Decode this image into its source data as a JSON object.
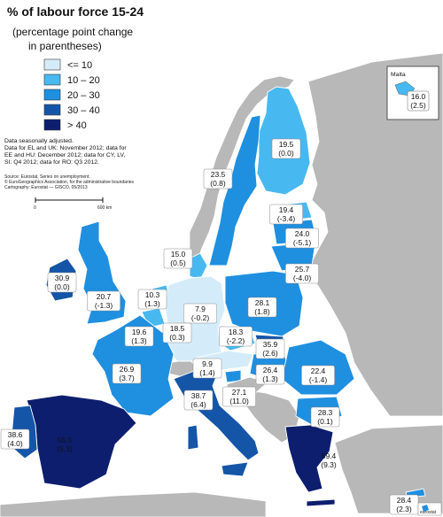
{
  "title": "% of labour force 15-24",
  "subtitle_lines": [
    "(percentage point change",
    "in parentheses)"
  ],
  "legend": [
    {
      "label": "<= 10",
      "color": "#d4ecfa"
    },
    {
      "label": "10 – 20",
      "color": "#48b8f0"
    },
    {
      "label": "20 – 30",
      "color": "#1f8fe0"
    },
    {
      "label": "30 – 40",
      "color": "#1455a8"
    },
    {
      "label": "> 40",
      "color": "#0d1e6e"
    }
  ],
  "notes": [
    "Data seasonally adjusted.",
    "Data for EL and UK: November 2012; data for",
    "EE and HU: December 2012; data for CY, LV,",
    "SI: Q4 2012; data for RO: Q3 2012."
  ],
  "source_lines": [
    "Source: Eurostat, Series on unemployment.",
    "© EuroGeographics Association, for the administrative boundaries",
    "Cartography: Eurostat — GISCO, 05/2013"
  ],
  "scale": {
    "start": "0",
    "end": "600 km"
  },
  "inset": {
    "label": "Malta",
    "value": "16.0",
    "change": "(2.5)"
  },
  "logo": {
    "text": "eurostat"
  },
  "countries": [
    {
      "code": "FI",
      "value": "19.5",
      "change": "(0.0)"
    },
    {
      "code": "SE",
      "value": "23.5",
      "change": "(0.8)"
    },
    {
      "code": "EE",
      "value": "19.4",
      "change": "(-3.4)"
    },
    {
      "code": "LV",
      "value": "24.0",
      "change": "(-5.1)"
    },
    {
      "code": "LT",
      "value": "25.7",
      "change": "(-4.0)"
    },
    {
      "code": "DK",
      "value": "15.0",
      "change": "(0.5)"
    },
    {
      "code": "IE",
      "value": "30.9",
      "change": "(0.0)"
    },
    {
      "code": "UK",
      "value": "20.7",
      "change": "(-1.3)"
    },
    {
      "code": "NL",
      "value": "10.3",
      "change": "(1.3)"
    },
    {
      "code": "DE",
      "value": "7.9",
      "change": "(-0.2)"
    },
    {
      "code": "PL",
      "value": "28.1",
      "change": "(1.8)"
    },
    {
      "code": "BE",
      "value": "19.6",
      "change": "(1.3)"
    },
    {
      "code": "LU",
      "value": "18.5",
      "change": "(0.3)"
    },
    {
      "code": "CZ",
      "value": "18.3",
      "change": "(-2.2)"
    },
    {
      "code": "SK",
      "value": "35.9",
      "change": "(2.6)"
    },
    {
      "code": "AT",
      "value": "9.9",
      "change": "(1.4)"
    },
    {
      "code": "HU",
      "value": "26.4",
      "change": "(1.3)"
    },
    {
      "code": "SI",
      "value": "27.1",
      "change": "(11.0)"
    },
    {
      "code": "FR",
      "value": "26.9",
      "change": "(3.7)"
    },
    {
      "code": "RO",
      "value": "22.4",
      "change": "(-1.4)"
    },
    {
      "code": "IT",
      "value": "38.7",
      "change": "(6.4)"
    },
    {
      "code": "BG",
      "value": "28.3",
      "change": "(0.1)"
    },
    {
      "code": "PT",
      "value": "38.6",
      "change": "(4.0)"
    },
    {
      "code": "ES",
      "value": "55.5",
      "change": "(5.3)"
    },
    {
      "code": "EL",
      "value": "59.4",
      "change": "(9.3)"
    },
    {
      "code": "CY",
      "value": "28.4",
      "change": "(2.3)"
    }
  ]
}
